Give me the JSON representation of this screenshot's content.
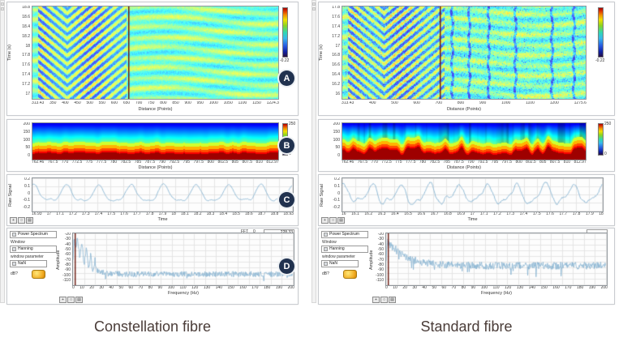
{
  "captions": {
    "left": "Constellation fibre",
    "right": "Standard fibre"
  },
  "badges": {
    "a": "A",
    "b": "B",
    "c": "C",
    "d": "D"
  },
  "ui": {
    "palette": [
      "+",
      "○",
      "▤"
    ]
  },
  "colors": {
    "cursor": "#6b1a10",
    "line": "#86b3d1",
    "grid": "#e4e4e4",
    "badge": "#21324f"
  },
  "columns": [
    {
      "panel_a": {
        "ylabel": "Time (s)",
        "xlabel": "Distance (Points)",
        "yticks": [
          "18.8",
          "18.6",
          "18.4",
          "18.2",
          "18",
          "17.8",
          "17.6",
          "17.4",
          "17.2",
          "17"
        ],
        "xticks": [
          "313.43",
          "350",
          "400",
          "450",
          "500",
          "550",
          "600",
          "650",
          "700",
          "750",
          "800",
          "850",
          "900",
          "950",
          "1000",
          "1050",
          "1100",
          "1150",
          "1224.3"
        ],
        "colorbar_min": "-0.22",
        "render": {
          "seed": 11,
          "apex": 0.14,
          "chevron_end": 0.38,
          "noise": 0.05,
          "speckle": 0,
          "streaks": [],
          "cursor": 0.39
        }
      },
      "panel_b": {
        "xlabel": "Distance (Points)",
        "yticks": [
          "200",
          "150",
          "100",
          "50",
          "0"
        ],
        "xticks": [
          "762.46",
          "767.5",
          "770",
          "772.5",
          "775",
          "777.5",
          "780",
          "782.5",
          "785",
          "787.5",
          "790",
          "792.5",
          "795",
          "797.5",
          "800",
          "802.5",
          "805",
          "807.5",
          "810",
          "812.97"
        ],
        "colorbar_max": "250",
        "colorbar_min": "0",
        "render": {
          "seed": 21,
          "red": 0.17,
          "wob": 0.015,
          "stripe": 0
        }
      },
      "panel_c": {
        "ylabel": "Raw Signal",
        "xlabel": "Time",
        "yticks": [
          "0.2",
          "0.1",
          "0",
          "-0.1",
          "-0.2"
        ],
        "xticks": [
          "16.93",
          "17",
          "17.1",
          "17.2",
          "17.3",
          "17.4",
          "17.5",
          "17.6",
          "17.7",
          "17.8",
          "17.9",
          "18",
          "18.1",
          "18.2",
          "18.3",
          "18.4",
          "18.5",
          "18.6",
          "18.7",
          "18.8",
          "18.93"
        ],
        "ylim": [
          -0.2,
          0.2
        ],
        "render": {
          "seed": 31,
          "cycles": 8,
          "a1": 0.095,
          "a2": 0.03,
          "phase": 1.3,
          "phase2": 1.0,
          "noise": 0.006
        }
      },
      "panel_d": {
        "controls": {
          "selector": "Power Spectrum",
          "window_label": "Window",
          "window_value": "Hanning",
          "param_label": "window parameter",
          "param_value": "NaN",
          "db_label": "dB?"
        },
        "fft_label": "FFT",
        "fft_index": "0",
        "fft_value": "228.33",
        "ylabel": "Amplitude",
        "xlabel": "Frequency (Hz)",
        "yticks": [
          "-20",
          "-30",
          "-40",
          "-50",
          "-60",
          "-70",
          "-80",
          "-90",
          "-100",
          "-110"
        ],
        "xticks": [
          "0",
          "10",
          "20",
          "30",
          "40",
          "50",
          "60",
          "70",
          "80",
          "90",
          "100",
          "110",
          "120",
          "130",
          "140",
          "150",
          "160",
          "170",
          "180",
          "190",
          "200"
        ],
        "ylim": [
          -110,
          -20
        ],
        "xlim": [
          0,
          200
        ],
        "render": {
          "seed": 41,
          "peak": -26,
          "floor": -92,
          "tau": 9,
          "noise": 5,
          "spike_p": 0.02,
          "spike_a": 10,
          "nharm": 5,
          "hdecay": 10,
          "f0": 4
        }
      }
    },
    {
      "panel_a": {
        "ylabel": "Time (s)",
        "xlabel": "Distance (Points)",
        "yticks": [
          "17.8",
          "17.6",
          "17.4",
          "17.2",
          "17",
          "16.8",
          "16.6",
          "16.4",
          "16.2",
          "16"
        ],
        "xticks": [
          "313.43",
          "400",
          "500",
          "600",
          "700",
          "800",
          "900",
          "1000",
          "1100",
          "1200",
          "1275.6"
        ],
        "colorbar_min": "-0.22",
        "render": {
          "seed": 12,
          "apex": 0.17,
          "chevron_end": 0.42,
          "noise": 0.09,
          "speckle": 0.08,
          "streaks": [
            0.45,
            0.52,
            0.6,
            0.71,
            0.86,
            0.95
          ],
          "cursor": 0.4
        }
      },
      "panel_b": {
        "xlabel": "Distance (Points)",
        "yticks": [
          "200",
          "150",
          "100",
          "50",
          "0"
        ],
        "xticks": [
          "762.46",
          "767.5",
          "770",
          "772.5",
          "775",
          "777.5",
          "780",
          "782.5",
          "785",
          "787.5",
          "790",
          "792.5",
          "795",
          "797.5",
          "800",
          "802.5",
          "805",
          "807.5",
          "810",
          "812.97"
        ],
        "colorbar_max": "250",
        "colorbar_min": "0",
        "render": {
          "seed": 22,
          "red": 0.23,
          "wob": 0.06,
          "stripe": 0.3
        }
      },
      "panel_c": {
        "ylabel": "Raw Signal",
        "xlabel": "Time",
        "yticks": [
          "0.2",
          "0.1",
          "0",
          "-0.1",
          "-0.2"
        ],
        "xticks": [
          "16",
          "16.1",
          "16.2",
          "16.3",
          "16.4",
          "16.5",
          "16.6",
          "16.7",
          "16.8",
          "16.9",
          "17",
          "17.1",
          "17.2",
          "17.3",
          "17.4",
          "17.5",
          "17.6",
          "17.7",
          "17.8",
          "17.9",
          "18"
        ],
        "ylim": [
          -0.2,
          0.2
        ],
        "render": {
          "seed": 32,
          "cycles": 9,
          "a1": 0.105,
          "a2": 0.04,
          "phase": 1.5,
          "phase2": 0.6,
          "noise": 0.014
        }
      },
      "panel_d": {
        "controls": {
          "selector": "Power Spectrum",
          "window_label": "Window",
          "window_value": "Hanning",
          "param_label": "window parameter",
          "param_value": "NaN",
          "db_label": "dB?"
        },
        "fft_label": "",
        "fft_index": "",
        "fft_value": "",
        "ylabel": "Amplitude",
        "xlabel": "Frequency (Hz)",
        "yticks": [
          "-20",
          "-30",
          "-40",
          "-50",
          "-60",
          "-70",
          "-80",
          "-90",
          "-100",
          "-110"
        ],
        "xticks": [
          "0",
          "10",
          "20",
          "30",
          "40",
          "50",
          "60",
          "70",
          "80",
          "90",
          "100",
          "110",
          "120",
          "130",
          "140",
          "150",
          "160",
          "170",
          "180",
          "190",
          "200"
        ],
        "ylim": [
          -110,
          -20
        ],
        "xlim": [
          0,
          200
        ],
        "render": {
          "seed": 42,
          "peak": -30,
          "floor": -77,
          "tau": 16,
          "noise": 6.5,
          "spike_p": 0.06,
          "spike_a": 18,
          "nharm": 3,
          "hdecay": 12,
          "f0": 4.4
        }
      }
    }
  ],
  "chart_data": [
    {
      "panel": "A-left",
      "type": "heatmap",
      "xlabel": "Distance (Points)",
      "ylabel": "Time (s)",
      "xlim": [
        313.43,
        1224.3
      ],
      "ylim": [
        17,
        18.9
      ],
      "colorbar_min": -0.22,
      "note": "DAS waterfall; coherent chevron wavefronts between ~350-660, vertical cursor near 670, pale cyan wavy field to the right"
    },
    {
      "panel": "B-left",
      "type": "heatmap",
      "xlabel": "Distance (Points)",
      "ylabel": "Frequency",
      "xlim": [
        762.46,
        812.97
      ],
      "ylim": [
        0,
        200
      ],
      "colorbar_max": 250,
      "note": "FFT band: solid red energy at low frequency, smooth blue gradient above"
    },
    {
      "panel": "C-left",
      "type": "line",
      "xlabel": "Time",
      "ylabel": "Raw Signal",
      "xlim": [
        16.93,
        18.93
      ],
      "ylim": [
        -0.2,
        0.2
      ],
      "note": "clean ~4 Hz periodic signal, 8 peaks, amplitude ~0.1, low noise"
    },
    {
      "panel": "D-left",
      "type": "line",
      "xlabel": "Frequency (Hz)",
      "ylabel": "Amplitude",
      "xlim": [
        0,
        200
      ],
      "ylim": [
        -110,
        -20
      ],
      "note": "power spectrum: peak ~-26 dB near 4 Hz with harmonics, noise floor ~-92 dB"
    },
    {
      "panel": "A-right",
      "type": "heatmap",
      "xlabel": "Distance (Points)",
      "ylabel": "Time (s)",
      "xlim": [
        313.43,
        1275.6
      ],
      "ylim": [
        16,
        17.9
      ],
      "colorbar_min": -0.22,
      "note": "same wavefronts but speckled/noisy with vertical fading streaks; cursor near 700"
    },
    {
      "panel": "B-right",
      "type": "heatmap",
      "xlabel": "Distance (Points)",
      "ylabel": "Frequency",
      "xlim": [
        762.46,
        812.97
      ],
      "ylim": [
        0,
        200
      ],
      "colorbar_max": 250,
      "note": "thicker wavy red base, vertical striations in blue region"
    },
    {
      "panel": "C-right",
      "type": "line",
      "xlabel": "Time",
      "ylabel": "Raw Signal",
      "xlim": [
        16,
        18
      ],
      "ylim": [
        -0.2,
        0.2
      ],
      "note": "~4.5 Hz periodic signal, 9 peaks, amplitude ~0.12, visibly noisier"
    },
    {
      "panel": "D-right",
      "type": "line",
      "xlabel": "Frequency (Hz)",
      "ylabel": "Amplitude",
      "xlim": [
        0,
        200
      ],
      "ylim": [
        -110,
        -20
      ],
      "note": "power spectrum: elevated noise floor ~-77 dB with deep downward spikes"
    }
  ]
}
